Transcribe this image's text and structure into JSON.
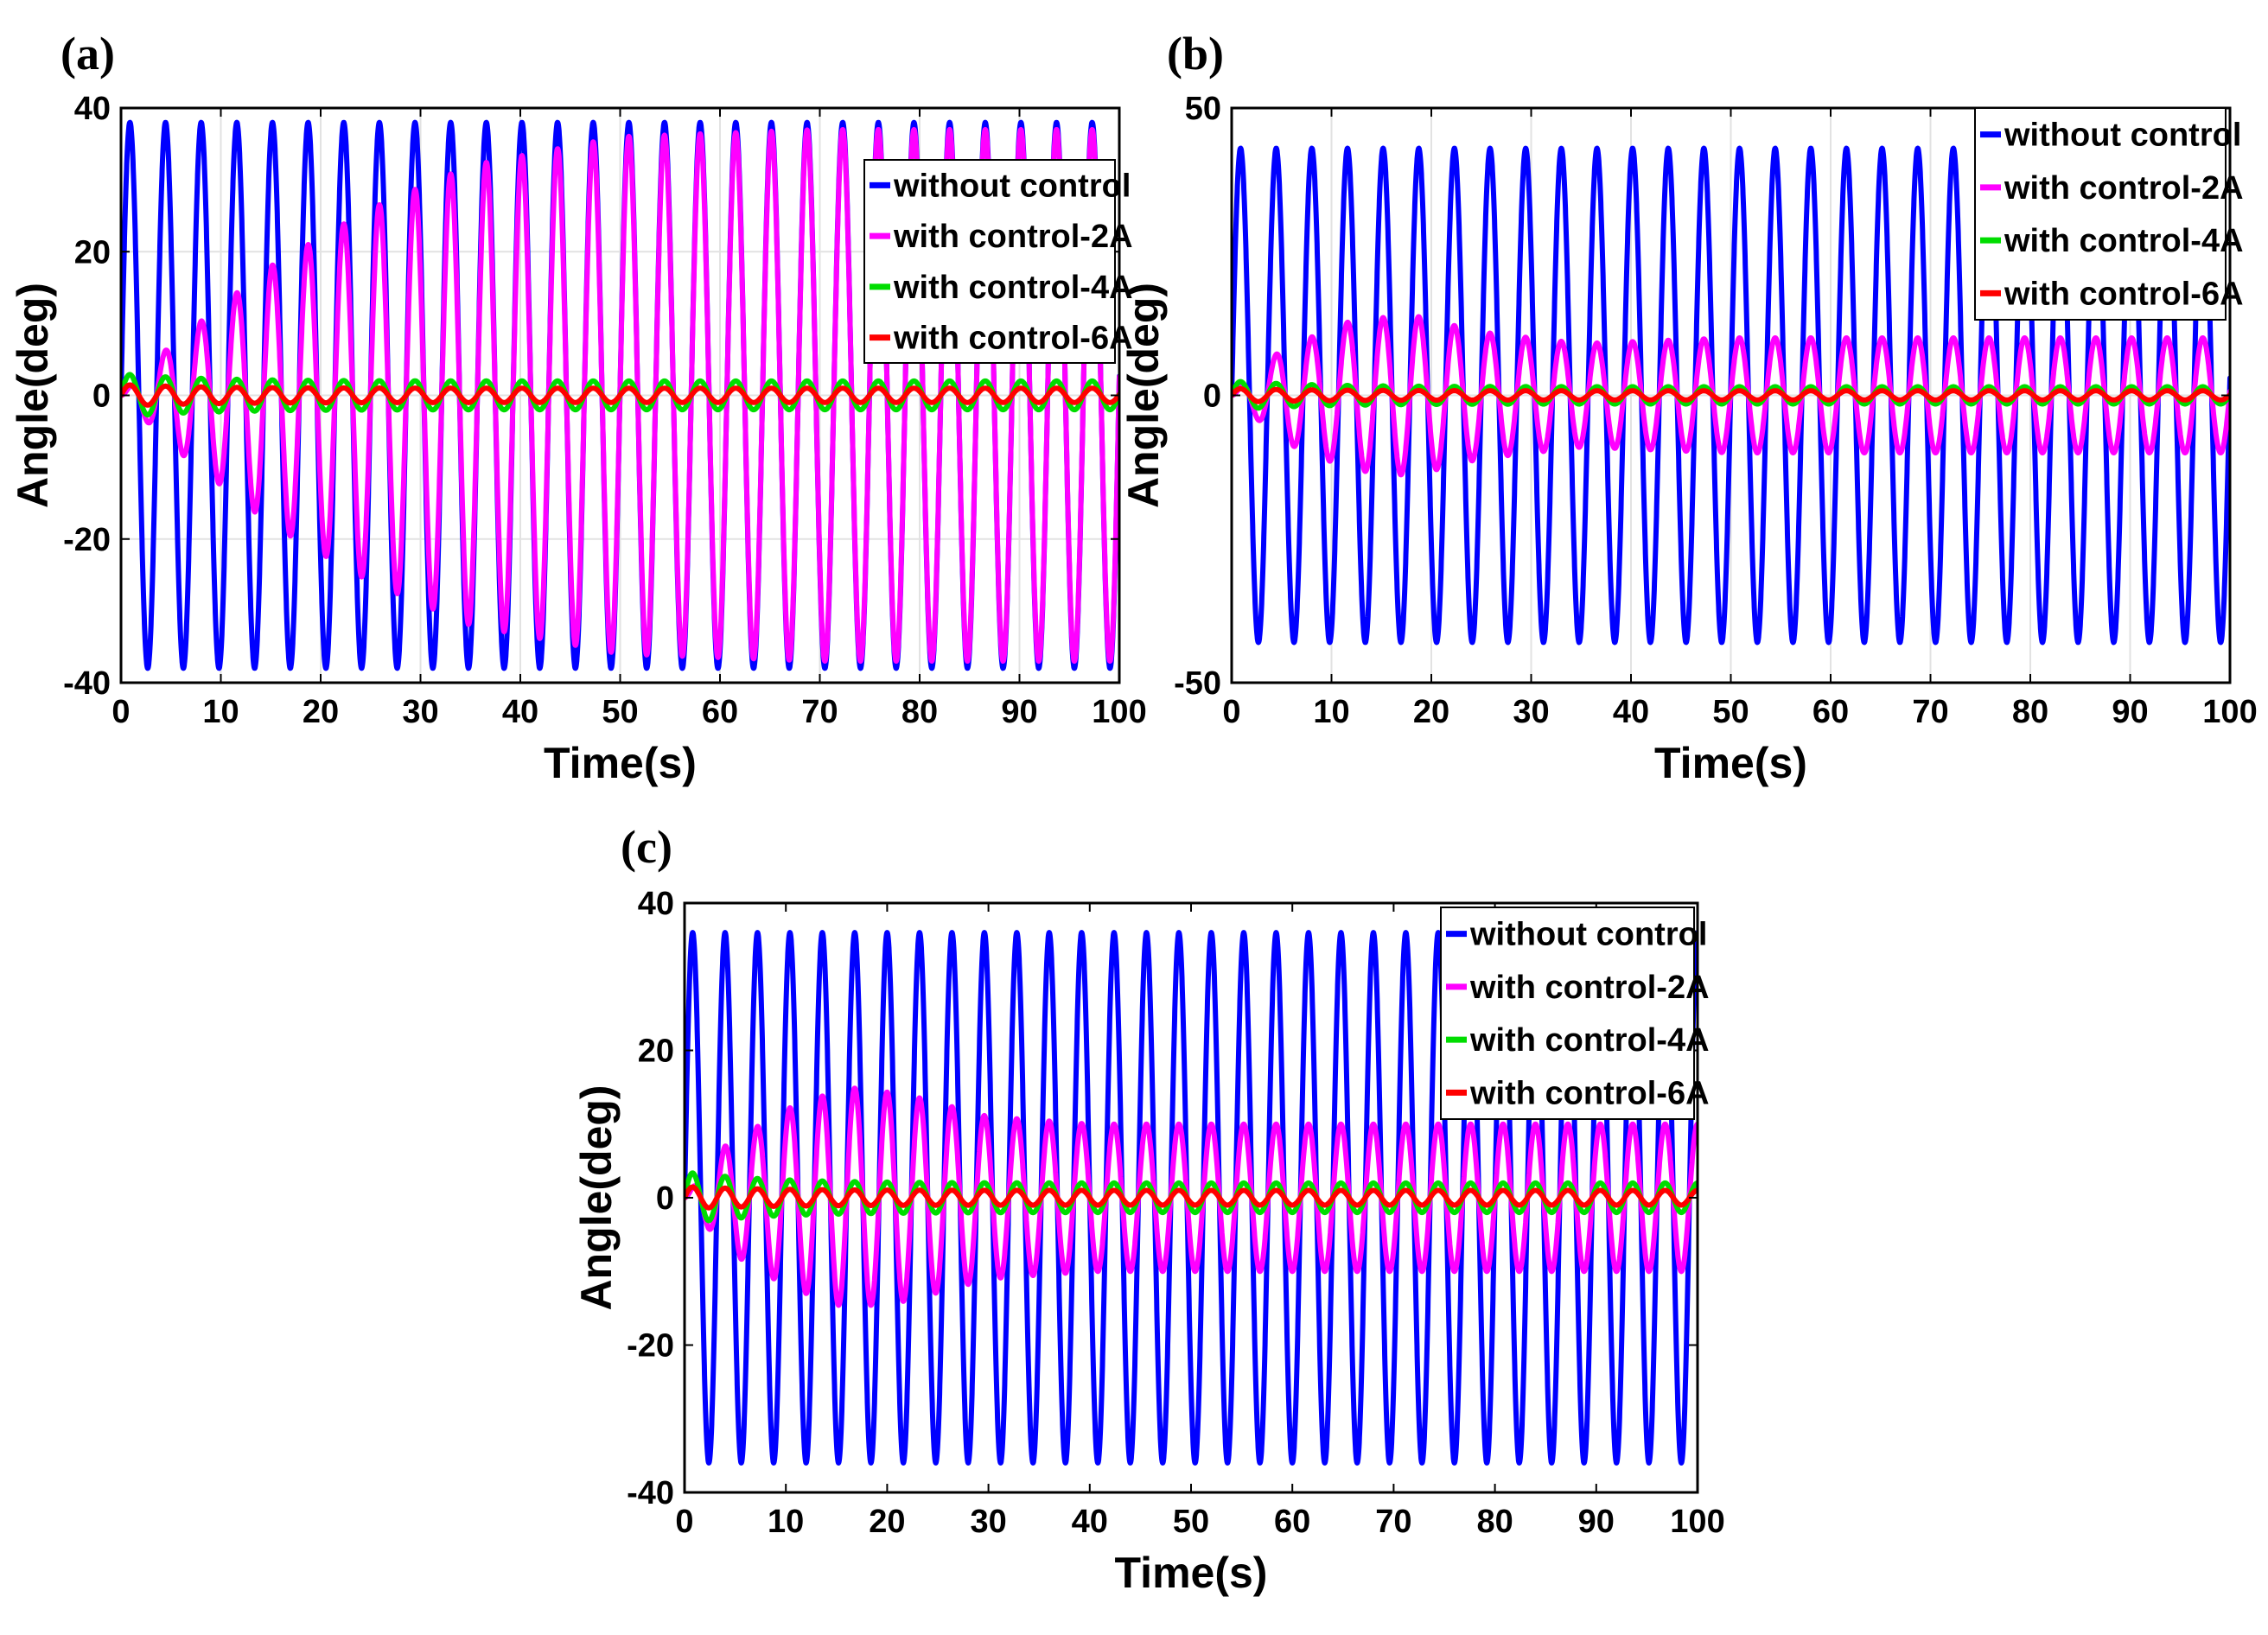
{
  "chart_data": [
    {
      "type": "line",
      "panel_label": "(a)",
      "title": "",
      "xlabel": "Time(s)",
      "ylabel": "Angle(deg)",
      "xlim": [
        0,
        100
      ],
      "ylim": [
        -40,
        40
      ],
      "xticks": [
        0,
        10,
        20,
        30,
        40,
        50,
        60,
        70,
        80,
        90,
        100
      ],
      "yticks": [
        -40,
        -20,
        0,
        20,
        40
      ],
      "grid": true,
      "legend_position": "top-right",
      "series": [
        {
          "name": "without control",
          "color": "#0000ff",
          "amplitude_deg": 38,
          "period_s": 3.57,
          "settling": "immediate"
        },
        {
          "name": "with control-2A",
          "color": "#ff00ff",
          "amplitude_deg": 37,
          "period_s": 3.57,
          "settling": "growing",
          "peak_approx": [
            [
              5,
              7
            ],
            [
              15,
              18
            ],
            [
              25,
              26
            ],
            [
              35,
              32
            ],
            [
              50,
              36
            ],
            [
              70,
              37
            ],
            [
              100,
              37
            ]
          ]
        },
        {
          "name": "with control-4A",
          "color": "#00dd00",
          "amplitude_deg": 2,
          "period_s": 3.57,
          "initial_peak_deg": 3
        },
        {
          "name": "with control-6A",
          "color": "#ff0000",
          "amplitude_deg": 1,
          "period_s": 3.57,
          "initial_peak_deg": 1.5
        }
      ]
    },
    {
      "type": "line",
      "panel_label": "(b)",
      "title": "",
      "xlabel": "Time(s)",
      "ylabel": "Angle(deg)",
      "xlim": [
        0,
        100
      ],
      "ylim": [
        -50,
        50
      ],
      "xticks": [
        0,
        10,
        20,
        30,
        40,
        50,
        60,
        70,
        80,
        90,
        100
      ],
      "yticks": [
        -50,
        0,
        50
      ],
      "grid": true,
      "legend_position": "top-right",
      "series": [
        {
          "name": "without control",
          "color": "#0000ff",
          "amplitude_deg": 43,
          "period_s": 3.57,
          "settling": "immediate"
        },
        {
          "name": "with control-2A",
          "color": "#ff00ff",
          "amplitude_deg": 10,
          "period_s": 3.57,
          "settling": "overshoot",
          "peak_approx": [
            [
              5,
              8
            ],
            [
              12,
              13
            ],
            [
              18,
              14
            ],
            [
              25,
              11
            ],
            [
              35,
              9
            ],
            [
              50,
              10
            ],
            [
              100,
              10
            ]
          ]
        },
        {
          "name": "with control-4A",
          "color": "#00dd00",
          "amplitude_deg": 1.5,
          "period_s": 3.57,
          "initial_peak_deg": 2.5
        },
        {
          "name": "with control-6A",
          "color": "#ff0000",
          "amplitude_deg": 0.8,
          "period_s": 3.57,
          "initial_peak_deg": 1.2
        }
      ]
    },
    {
      "type": "line",
      "panel_label": "(c)",
      "title": "",
      "xlabel": "Time(s)",
      "ylabel": "Angle(deg)",
      "xlim": [
        0,
        100
      ],
      "ylim": [
        -40,
        40
      ],
      "xticks": [
        0,
        10,
        20,
        30,
        40,
        50,
        60,
        70,
        80,
        90,
        100
      ],
      "yticks": [
        -40,
        -20,
        0,
        20,
        40
      ],
      "grid": false,
      "legend_position": "top-right",
      "series": [
        {
          "name": "without control",
          "color": "#0000ff",
          "amplitude_deg": 36,
          "period_s": 3.2,
          "settling": "immediate"
        },
        {
          "name": "with control-2A",
          "color": "#ff00ff",
          "amplitude_deg": 10,
          "period_s": 3.2,
          "settling": "overshoot",
          "peak_approx": [
            [
              4,
              7
            ],
            [
              10,
              12
            ],
            [
              16,
              15
            ],
            [
              22,
              14
            ],
            [
              30,
              11
            ],
            [
              40,
              10
            ],
            [
              100,
              10
            ]
          ]
        },
        {
          "name": "with control-4A",
          "color": "#00dd00",
          "amplitude_deg": 2,
          "period_s": 3.2,
          "initial_peak_deg": 3.5
        },
        {
          "name": "with control-6A",
          "color": "#ff0000",
          "amplitude_deg": 1,
          "period_s": 3.2,
          "initial_peak_deg": 1.5
        }
      ]
    }
  ]
}
